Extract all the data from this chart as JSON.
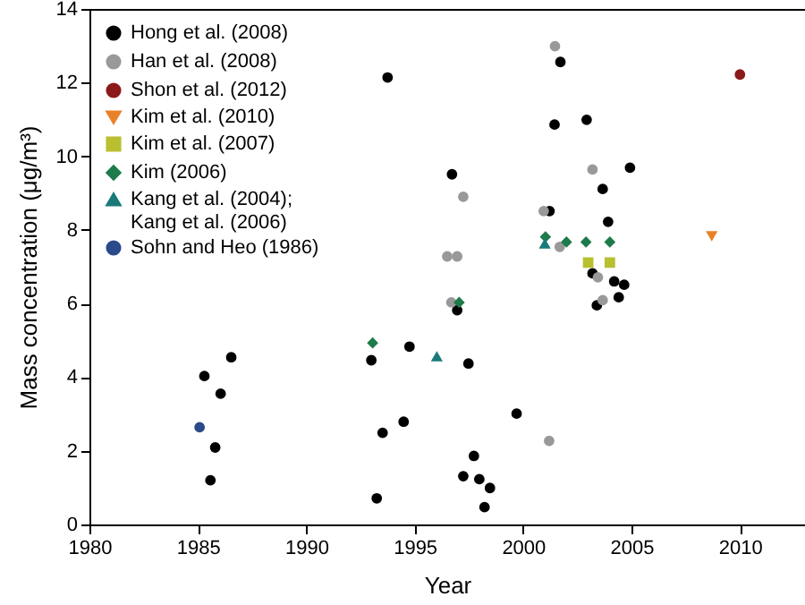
{
  "chart_data": {
    "type": "scatter",
    "xlabel": "Year",
    "ylabel": "Mass concentration (μg/m³)",
    "xlim": [
      1980,
      2013
    ],
    "xticks": [
      1980,
      1985,
      1990,
      1995,
      2000,
      2005,
      2010
    ],
    "ylim": [
      0,
      14
    ],
    "yticks": [
      0,
      2,
      4,
      6,
      8,
      10,
      12,
      14
    ],
    "grid": false,
    "legend": "top left",
    "series": [
      {
        "name": "Hong et al. (2008)",
        "color": "#000000",
        "marker": "circle",
        "x": [
          1993.75,
          2001.72,
          2001.45,
          2002.93,
          1996.72,
          2004.93,
          2003.67,
          2001.22,
          2003.92,
          2003.2,
          2004.2,
          2004.66,
          2004.41,
          2003.4,
          1996.96,
          1994.76,
          1993.0,
          1997.48,
          1999.7,
          1993.52,
          1994.49,
          1997.73,
          1997.24,
          1997.98,
          1998.47,
          1998.22,
          1993.25,
          1985.3,
          1986.54,
          1986.05,
          1985.8,
          1985.58
        ],
        "values": [
          12.14,
          12.56,
          10.86,
          10.99,
          9.51,
          9.69,
          9.11,
          8.51,
          8.22,
          6.82,
          6.6,
          6.51,
          6.17,
          5.95,
          5.82,
          4.83,
          4.46,
          4.37,
          3.01,
          2.49,
          2.79,
          1.86,
          1.31,
          1.23,
          0.99,
          0.47,
          0.71,
          4.03,
          4.54,
          3.55,
          2.09,
          1.2
        ]
      },
      {
        "name": "Han et al. (2008)",
        "color": "#999999",
        "marker": "circle",
        "x": [
          2001.47,
          2003.2,
          1997.24,
          2000.95,
          1996.5,
          1996.96,
          2001.69,
          2003.45,
          2003.67,
          1996.69,
          2001.2
        ],
        "values": [
          12.99,
          9.64,
          8.9,
          8.51,
          7.28,
          7.28,
          7.54,
          6.71,
          6.09,
          6.03,
          2.27
        ]
      },
      {
        "name": "Shon et al. (2012)",
        "color": "#8b1a1a",
        "marker": "circle",
        "x": [
          2010.0
        ],
        "values": [
          12.22
        ]
      },
      {
        "name": "Kim et al. (2010)",
        "color": "#e8822a",
        "marker": "triangle-down",
        "x": [
          2008.7
        ],
        "values": [
          7.84
        ]
      },
      {
        "name": "Kim et al. (2007)",
        "color": "#b8c030",
        "marker": "square",
        "x": [
          2003.0,
          2004.0
        ],
        "values": [
          7.11,
          7.11
        ]
      },
      {
        "name": "Kim (2006)",
        "color": "#1e7b4a",
        "marker": "diamond",
        "x": [
          2001.03,
          2002.0,
          2002.9,
          2004.0,
          1997.05,
          1993.06
        ],
        "values": [
          7.81,
          7.67,
          7.67,
          7.67,
          6.03,
          4.93
        ]
      },
      {
        "name": "Kang et al. (2004);\nKang et al. (2006)",
        "color": "#1a7a7a",
        "marker": "triangle-up",
        "x": [
          2001.0,
          1996.02
        ],
        "values": [
          7.62,
          4.56
        ]
      },
      {
        "name": "Sohn and Heo (1986)",
        "color": "#2a4a8a",
        "marker": "circle",
        "x": [
          1985.08
        ],
        "values": [
          2.64
        ]
      }
    ]
  }
}
